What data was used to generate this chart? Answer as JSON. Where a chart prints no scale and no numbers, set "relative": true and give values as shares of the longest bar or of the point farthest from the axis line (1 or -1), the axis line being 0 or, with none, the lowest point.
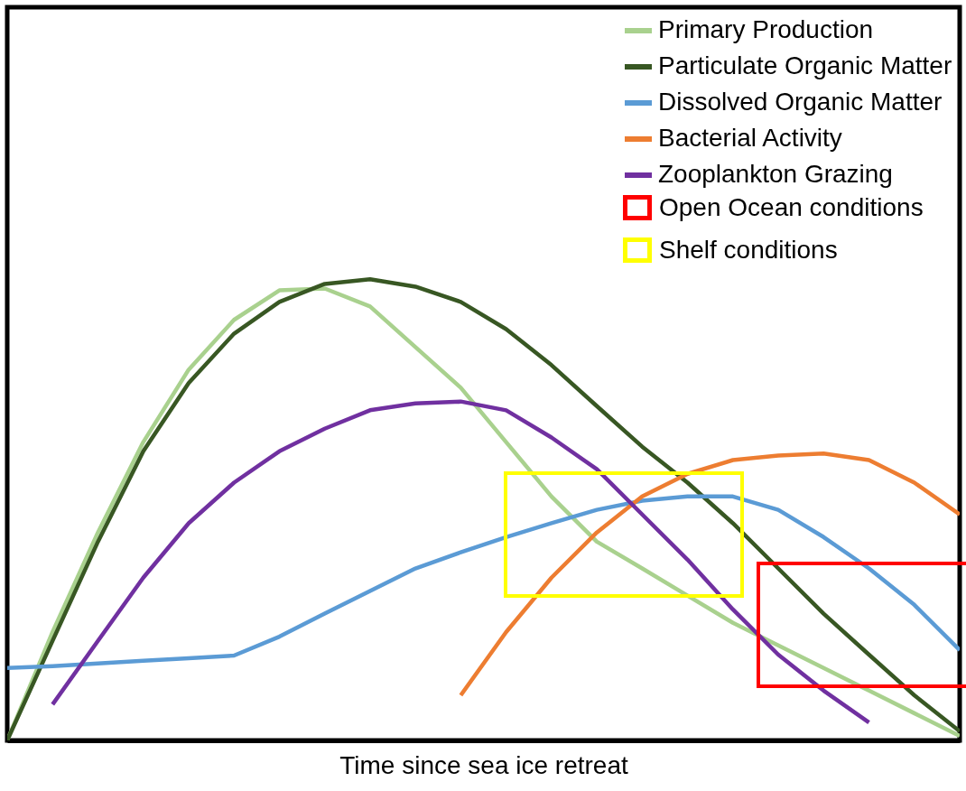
{
  "chart_data": {
    "type": "line",
    "xlabel": "Time since sea ice retreat",
    "relative": true,
    "legend": "top right",
    "categories": [
      null,
      null,
      null,
      null,
      null,
      null,
      null,
      null,
      null,
      null,
      null,
      null,
      null,
      null,
      null,
      null,
      null,
      null,
      null,
      null,
      null,
      null
    ],
    "annotations": [
      "Open Ocean conditions",
      "Shelf conditions"
    ],
    "series": [
      {
        "name": "Primary Production",
        "color": "#a9d18e",
        "values": [
          0,
          0.235,
          0.451,
          0.647,
          0.804,
          0.912,
          0.976,
          0.98,
          0.941,
          0.853,
          0.765,
          0.647,
          0.529,
          0.431,
          0.373,
          0.314,
          0.255,
          0.206,
          0.157,
          0.108,
          0.059,
          0.01
        ]
      },
      {
        "name": "Particulate Organic Matter",
        "color": "#385723",
        "values": [
          0,
          0.216,
          0.431,
          0.627,
          0.775,
          0.882,
          0.951,
          0.99,
          1,
          0.984,
          0.951,
          0.892,
          0.814,
          0.725,
          0.637,
          0.559,
          0.471,
          0.373,
          0.275,
          0.186,
          0.098,
          0.02
        ]
      },
      {
        "name": "Dissolved Organic Matter",
        "color": "#5b9bd5",
        "values": [
          0.157,
          0.161,
          0.167,
          0.173,
          0.178,
          0.184,
          0.225,
          0.275,
          0.324,
          0.373,
          0.408,
          0.441,
          0.471,
          0.5,
          0.52,
          0.529,
          0.529,
          0.5,
          0.441,
          0.373,
          0.294,
          0.196
        ]
      },
      {
        "name": "Bacterial Activity",
        "color": "#ed7d31",
        "values": [
          null,
          null,
          null,
          null,
          null,
          null,
          null,
          null,
          null,
          null,
          0.098,
          0.235,
          0.353,
          0.451,
          0.529,
          0.578,
          0.608,
          0.618,
          0.622,
          0.608,
          0.559,
          0.49
        ]
      },
      {
        "name": "Zooplankton Grazing",
        "color": "#7030a0",
        "values": [
          null,
          0.078,
          0.216,
          0.353,
          0.471,
          0.559,
          0.627,
          0.676,
          0.716,
          0.731,
          0.735,
          0.716,
          0.657,
          0.588,
          0.49,
          0.392,
          0.284,
          0.186,
          0.108,
          0.039,
          null,
          null
        ]
      }
    ]
  }
}
